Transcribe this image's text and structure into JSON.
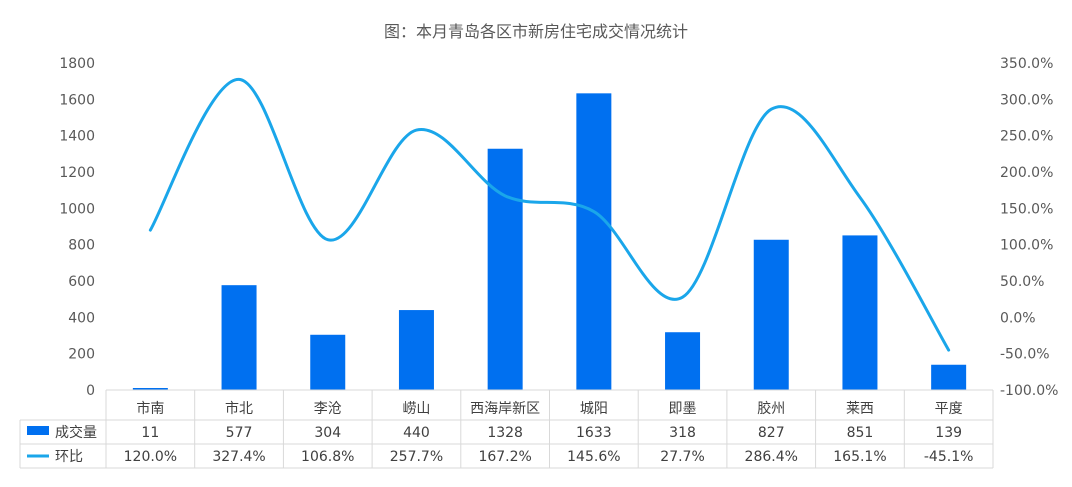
{
  "chart_data": {
    "type": "bar",
    "title": "图：本月青岛各区市新房住宅成交情况统计",
    "categories": [
      "市南",
      "市北",
      "李沧",
      "崂山",
      "西海岸新区",
      "城阳",
      "即墨",
      "胶州",
      "莱西",
      "平度"
    ],
    "series": [
      {
        "name": "成交量",
        "type": "bar",
        "axis": "left",
        "color": "#0070F0",
        "values": [
          11,
          577,
          304,
          440,
          1328,
          1633,
          318,
          827,
          851,
          139
        ],
        "labels": [
          "11",
          "577",
          "304",
          "440",
          "1328",
          "1633",
          "318",
          "827",
          "851",
          "139"
        ]
      },
      {
        "name": "环比",
        "type": "line",
        "axis": "right",
        "smooth": true,
        "color": "#1AA6EA",
        "values": [
          120.0,
          327.4,
          106.8,
          257.7,
          167.2,
          145.6,
          27.7,
          286.4,
          165.1,
          -45.1
        ],
        "labels": [
          "120.0%",
          "327.4%",
          "106.8%",
          "257.7%",
          "167.2%",
          "145.6%",
          "27.7%",
          "286.4%",
          "165.1%",
          "-45.1%"
        ]
      }
    ],
    "y_left": {
      "lim": [
        0,
        1800
      ],
      "ticks": [
        "0",
        "200",
        "400",
        "600",
        "800",
        "1000",
        "1200",
        "1400",
        "1600",
        "1800"
      ]
    },
    "y_right": {
      "lim": [
        -100,
        350
      ],
      "ticks": [
        "-100.0%",
        "-50.0%",
        "0.0%",
        "50.0%",
        "100.0%",
        "150.0%",
        "200.0%",
        "250.0%",
        "300.0%",
        "350.0%"
      ]
    },
    "grid": false,
    "legend": "data-table"
  }
}
